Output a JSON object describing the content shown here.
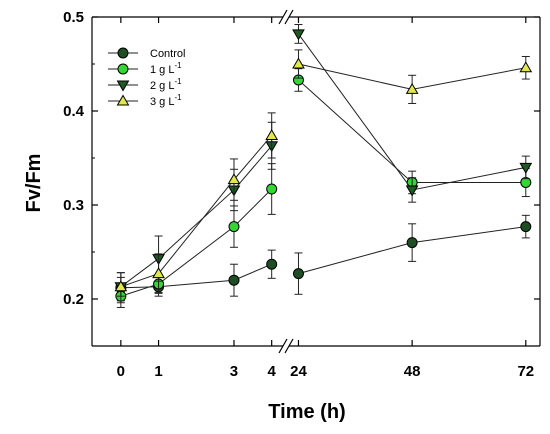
{
  "chart_data": {
    "type": "line",
    "xlabel": "Time (h)",
    "ylabel": "Fv/Fm",
    "ylim": [
      0.15,
      0.5
    ],
    "y_ticks": [
      0.2,
      0.3,
      0.4,
      0.5
    ],
    "y_tick_labels": [
      "0.2",
      "0.3",
      "0.4",
      "0.5"
    ],
    "x_segments": [
      {
        "xlim": [
          -0.5,
          4.3
        ],
        "ticks": [
          0,
          1,
          3,
          4
        ],
        "tick_labels": [
          "0",
          "1",
          "3",
          "4"
        ]
      },
      {
        "xlim": [
          22,
          75
        ],
        "ticks": [
          24,
          48,
          72
        ],
        "tick_labels": [
          "24",
          "48",
          "72"
        ]
      }
    ],
    "axis_break": "x between 4 and 24",
    "grid": false,
    "legend_position": "top-left",
    "series": [
      {
        "name": "Control",
        "legend_base": "Control",
        "legend_sup": "",
        "marker": "circle",
        "color": "#1f4e24",
        "segments": [
          {
            "x": [
              0,
              1,
              3,
              4
            ],
            "y": [
              0.212,
              0.213,
              0.22,
              0.237
            ],
            "err": [
              0.016,
              0.01,
              0.017,
              0.015
            ]
          },
          {
            "x": [
              24,
              48,
              72
            ],
            "y": [
              0.227,
              0.26,
              0.277
            ],
            "err": [
              0.022,
              0.02,
              0.012
            ]
          }
        ]
      },
      {
        "name": "1 g L-1",
        "legend_base": "1 g L",
        "legend_sup": "-1",
        "marker": "circle",
        "color": "#34d634",
        "segments": [
          {
            "x": [
              0,
              1,
              3,
              4
            ],
            "y": [
              0.203,
              0.216,
              0.277,
              0.317
            ],
            "err": [
              0.012,
              0.009,
              0.022,
              0.027
            ]
          },
          {
            "x": [
              24,
              48,
              72
            ],
            "y": [
              0.433,
              0.324,
              0.324
            ],
            "err": [
              0.012,
              0.012,
              0.015
            ]
          }
        ]
      },
      {
        "name": "2 g L-1",
        "legend_base": "2 g L",
        "legend_sup": "-1",
        "marker": "triangle-down",
        "color": "#1f5a24",
        "segments": [
          {
            "x": [
              0,
              1,
              3,
              4
            ],
            "y": [
              0.213,
              0.243,
              0.316,
              0.363
            ],
            "err": [
              0.01,
              0.024,
              0.022,
              0.025
            ]
          },
          {
            "x": [
              24,
              48,
              72
            ],
            "y": [
              0.482,
              0.316,
              0.34
            ],
            "err": [
              0.01,
              0.013,
              0.012
            ]
          }
        ]
      },
      {
        "name": "3 g L-1",
        "legend_base": "3 g L",
        "legend_sup": "-1",
        "marker": "triangle-up",
        "color": "#e2e84a",
        "segments": [
          {
            "x": [
              0,
              1,
              3,
              4
            ],
            "y": [
              0.213,
              0.227,
              0.327,
              0.374
            ],
            "err": [
              0.015,
              0.021,
              0.022,
              0.024
            ]
          },
          {
            "x": [
              24,
              48,
              72
            ],
            "y": [
              0.45,
              0.423,
              0.446
            ],
            "err": [
              0.015,
              0.015,
              0.012
            ]
          }
        ]
      }
    ]
  }
}
